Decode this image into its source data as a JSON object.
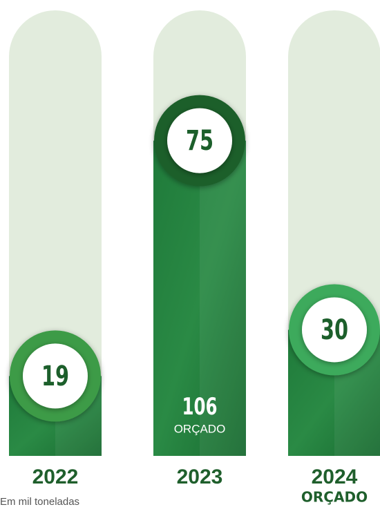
{
  "chart_data": {
    "type": "bar",
    "categories": [
      "2022",
      "2023",
      "2024"
    ],
    "values": [
      19,
      75,
      30
    ],
    "colors": [
      "#3c9b46",
      "#1c5f2b",
      "#3eaa5c"
    ],
    "budget_values": [
      null,
      106,
      null
    ],
    "budget_label": "ORÇADO",
    "budgeted": [
      false,
      false,
      true
    ],
    "ylim": [
      0,
      106
    ],
    "note": "Em mil toneladas"
  }
}
